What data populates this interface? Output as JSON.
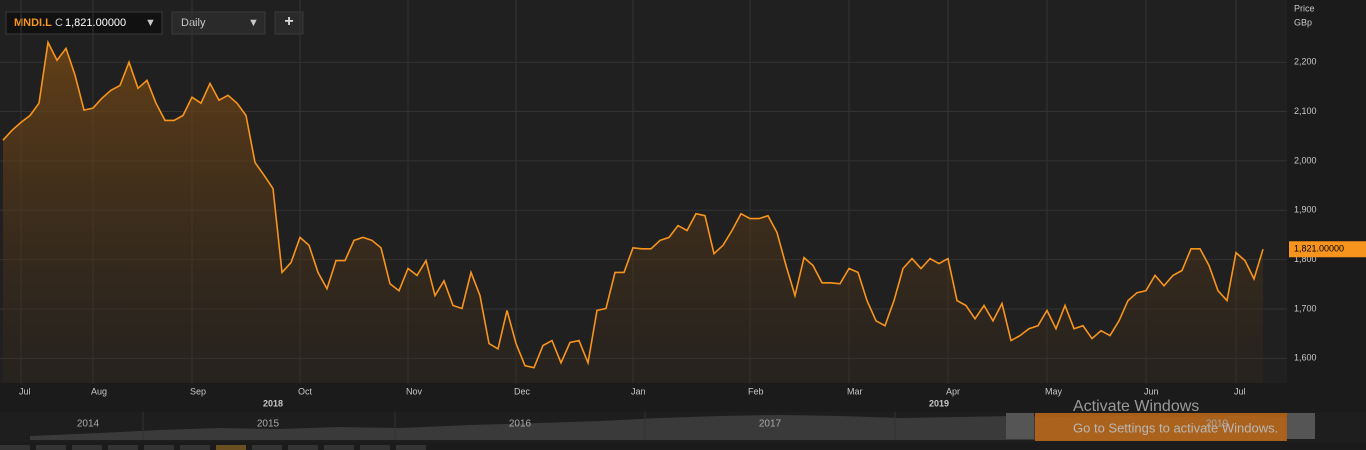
{
  "header": {
    "instrument": "MNDI.L",
    "price_type": "C",
    "price": "1,821.00000",
    "interval": "Daily",
    "add_button": "+"
  },
  "chart_data": {
    "type": "line",
    "y_label_1": "Price",
    "y_label_2": "GBp",
    "price_tag": "1,821.00000",
    "color": "#f7941d",
    "grid": true,
    "ylim": [
      1550,
      2326
    ],
    "yticks": [
      {
        "value": 1600,
        "label": "1,600"
      },
      {
        "value": 1700,
        "label": "1,700"
      },
      {
        "value": 1800,
        "label": "1,800"
      },
      {
        "value": 1900,
        "label": "1,900"
      },
      {
        "value": 2000,
        "label": "2,000"
      },
      {
        "value": 2100,
        "label": "2,100"
      },
      {
        "value": 2200,
        "label": "2,200"
      }
    ],
    "categories": [
      null,
      null,
      "Jul",
      null,
      null,
      null,
      null,
      null,
      null,
      null,
      "Aug",
      null,
      null,
      null,
      null,
      null,
      null,
      null,
      null,
      null,
      null,
      "Sep",
      null,
      null,
      null,
      null,
      null,
      null,
      null,
      null,
      null,
      null,
      null,
      "Oct",
      null,
      null,
      null,
      null,
      null,
      null,
      null,
      null,
      null,
      null,
      null,
      "Nov",
      null,
      null,
      null,
      null,
      null,
      null,
      null,
      null,
      null,
      null,
      null,
      "Dec",
      null,
      null,
      null,
      null,
      null,
      null,
      null,
      null,
      null,
      null,
      null,
      null,
      "Jan",
      null,
      null,
      null,
      null,
      null,
      null,
      null,
      null,
      null,
      null,
      null,
      null,
      "Feb",
      null,
      null,
      null,
      null,
      null,
      null,
      null,
      null,
      null,
      null,
      "Mar",
      null,
      null,
      null,
      null,
      null,
      null,
      null,
      null,
      null,
      null,
      "Apr",
      null,
      null,
      null,
      null,
      null,
      null,
      null,
      null,
      null,
      null,
      "May",
      null,
      null,
      null,
      null,
      null,
      null,
      null,
      null,
      null,
      null,
      "Jun",
      null,
      null,
      null,
      null,
      null,
      null,
      null,
      null,
      null,
      "Jul",
      null,
      null,
      null
    ],
    "years": [
      null,
      null,
      null,
      null,
      null,
      null,
      null,
      null,
      null,
      null,
      null,
      null,
      null,
      null,
      null,
      null,
      null,
      null,
      null,
      null,
      null,
      null,
      null,
      null,
      null,
      null,
      null,
      null,
      null,
      null,
      "2018",
      null,
      null,
      null,
      null,
      null,
      null,
      null,
      null,
      null,
      null,
      null,
      null,
      null,
      null,
      null,
      null,
      null,
      null,
      null,
      null,
      null,
      null,
      null,
      null,
      null,
      null,
      null,
      null,
      null,
      null,
      null,
      null,
      null,
      null,
      null,
      null,
      null,
      null,
      null,
      null,
      null,
      null,
      null,
      null,
      null,
      null,
      null,
      null,
      null,
      null,
      null,
      null,
      null,
      null,
      null,
      null,
      null,
      null,
      null,
      null,
      null,
      null,
      null,
      null,
      null,
      null,
      null,
      null,
      null,
      null,
      null,
      null,
      null,
      "2019",
      null,
      null,
      null,
      null,
      null,
      null,
      null,
      null,
      null,
      null,
      null,
      null,
      null,
      null,
      null,
      null,
      null,
      null,
      null,
      null,
      null,
      null,
      null,
      null,
      null,
      null,
      null,
      null,
      null,
      null,
      null,
      null,
      null,
      null,
      null
    ],
    "values": [
      2042,
      2062,
      2078,
      2092,
      2117,
      2240,
      2204,
      2228,
      2174,
      2103,
      2107,
      2127,
      2143,
      2153,
      2200,
      2147,
      2163,
      2117,
      2082,
      2082,
      2092,
      2129,
      2117,
      2157,
      2123,
      2133,
      2117,
      2092,
      1997,
      1971,
      1944,
      1774,
      1794,
      1845,
      1829,
      1774,
      1741,
      1798,
      1798,
      1839,
      1845,
      1839,
      1824,
      1751,
      1737,
      1782,
      1768,
      1798,
      1727,
      1757,
      1707,
      1701,
      1774,
      1727,
      1630,
      1619,
      1697,
      1630,
      1585,
      1581,
      1626,
      1636,
      1591,
      1632,
      1636,
      1591,
      1697,
      1701,
      1774,
      1774,
      1824,
      1822,
      1822,
      1839,
      1845,
      1869,
      1859,
      1893,
      1889,
      1812,
      1829,
      1859,
      1893,
      1883,
      1883,
      1889,
      1855,
      1788,
      1727,
      1804,
      1788,
      1753,
      1753,
      1751,
      1782,
      1774,
      1717,
      1676,
      1666,
      1717,
      1782,
      1802,
      1782,
      1802,
      1792,
      1802,
      1717,
      1707,
      1680,
      1707,
      1676,
      1711,
      1636,
      1646,
      1660,
      1666,
      1697,
      1660,
      1707,
      1660,
      1666,
      1640,
      1656,
      1646,
      1676,
      1717,
      1733,
      1737,
      1768,
      1747,
      1768,
      1778,
      1822,
      1822,
      1788,
      1737,
      1717,
      1814,
      1798,
      1761,
      1821
    ]
  },
  "navigator": {
    "years": [
      "2014",
      "2015",
      "2016",
      "2017",
      "2019"
    ]
  },
  "overlay": {
    "title": "Activate Windows",
    "subtitle": "Go to Settings to activate Windows."
  }
}
